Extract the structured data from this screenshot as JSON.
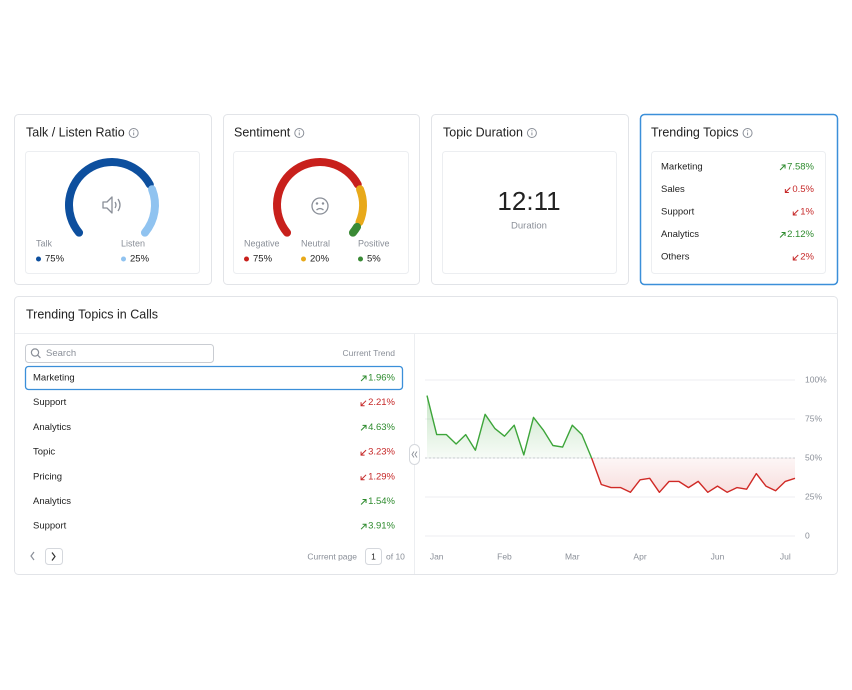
{
  "cards": {
    "talk_listen": {
      "title": "Talk / Listen Ratio",
      "items": [
        {
          "label": "Talk",
          "value": 75,
          "value_label": "75%",
          "color": "#0d4f9e"
        },
        {
          "label": "Listen",
          "value": 25,
          "value_label": "25%",
          "color": "#90c3f0"
        }
      ]
    },
    "sentiment": {
      "title": "Sentiment",
      "items": [
        {
          "label": "Negative",
          "value": 75,
          "value_label": "75%",
          "color": "#c8201c"
        },
        {
          "label": "Neutral",
          "value": 20,
          "value_label": "20%",
          "color": "#e8a91a"
        },
        {
          "label": "Positive",
          "value": 5,
          "value_label": "5%",
          "color": "#3a8a35"
        }
      ]
    },
    "topic_duration": {
      "title": "Topic Duration",
      "value": "12:11",
      "label": "Duration"
    },
    "trending_topics": {
      "title": "Trending Topics",
      "rows": [
        {
          "name": "Marketing",
          "change": "7.58%",
          "trend": "up"
        },
        {
          "name": "Sales",
          "change": "0.5%",
          "trend": "down"
        },
        {
          "name": "Support",
          "change": "1%",
          "trend": "down"
        },
        {
          "name": "Analytics",
          "change": "2.12%",
          "trend": "up"
        },
        {
          "name": "Others",
          "change": "2%",
          "trend": "down"
        }
      ]
    }
  },
  "calls_panel": {
    "title": "Trending Topics in Calls",
    "search_placeholder": "Search",
    "column_header": "Current Trend",
    "selected_row": 0,
    "rows": [
      {
        "name": "Marketing",
        "change": "1.96%",
        "trend": "up"
      },
      {
        "name": "Support",
        "change": "2.21%",
        "trend": "down"
      },
      {
        "name": "Analytics",
        "change": "4.63%",
        "trend": "up"
      },
      {
        "name": "Topic",
        "change": "3.23%",
        "trend": "down"
      },
      {
        "name": "Pricing",
        "change": "1.29%",
        "trend": "down"
      },
      {
        "name": "Analytics",
        "change": "1.54%",
        "trend": "up"
      },
      {
        "name": "Support",
        "change": "3.91%",
        "trend": "up"
      }
    ],
    "pagination": {
      "label": "Current page",
      "page": 1,
      "total": "of 10"
    }
  },
  "chart_data": {
    "type": "line",
    "categories": [
      null,
      "Jan",
      null,
      null,
      null,
      null,
      null,
      null,
      "Feb",
      null,
      null,
      null,
      null,
      null,
      null,
      "Mar",
      null,
      null,
      null,
      null,
      null,
      null,
      "Apr",
      null,
      null,
      null,
      null,
      null,
      null,
      null,
      "Jun",
      null,
      null,
      null,
      null,
      null,
      null,
      "Jul",
      null
    ],
    "values": [
      90,
      65,
      65,
      59,
      65,
      55,
      78,
      69,
      64,
      71,
      52,
      76,
      68,
      58,
      57,
      71,
      65,
      50,
      33,
      31,
      31,
      28,
      36,
      37,
      28,
      35,
      35,
      31,
      35,
      28,
      32,
      28,
      31,
      30,
      40,
      32,
      29,
      35,
      37
    ],
    "ylim": [
      0,
      100
    ],
    "yticks": [
      0,
      {
        "value": 25,
        "label": "25%"
      },
      {
        "value": 50,
        "label": "50%"
      },
      {
        "value": 75,
        "label": "75%"
      },
      {
        "value": 100,
        "label": "100%"
      }
    ],
    "grid": true,
    "threshold": 50,
    "above_color": "#3da53a",
    "below_color": "#d02a26"
  }
}
